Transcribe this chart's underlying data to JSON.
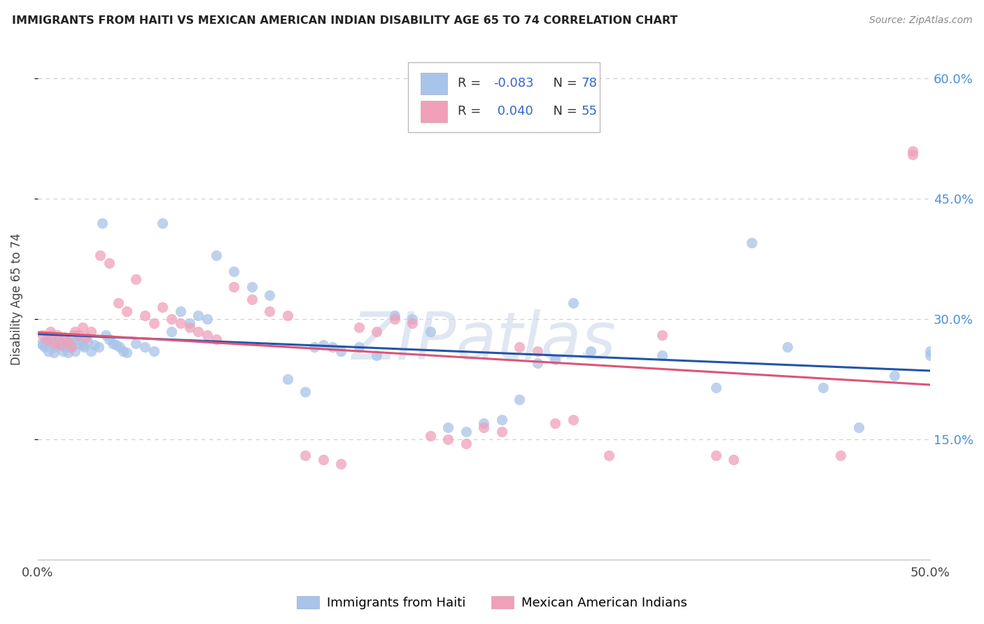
{
  "title": "IMMIGRANTS FROM HAITI VS MEXICAN AMERICAN INDIAN DISABILITY AGE 65 TO 74 CORRELATION CHART",
  "source": "Source: ZipAtlas.com",
  "ylabel": "Disability Age 65 to 74",
  "xlim": [
    0.0,
    0.5
  ],
  "ylim": [
    0.0,
    0.65
  ],
  "legend_label1": "Immigrants from Haiti",
  "legend_label2": "Mexican American Indians",
  "color_blue": "#a8c4e8",
  "color_pink": "#f0a0b8",
  "line_color_blue": "#2255aa",
  "line_color_pink": "#dd5577",
  "watermark": "ZIPatlas",
  "background_color": "#ffffff",
  "grid_color": "#cccccc",
  "haiti_x": [
    0.002,
    0.003,
    0.004,
    0.005,
    0.006,
    0.007,
    0.008,
    0.009,
    0.01,
    0.011,
    0.012,
    0.013,
    0.014,
    0.015,
    0.016,
    0.017,
    0.018,
    0.019,
    0.02,
    0.021,
    0.022,
    0.023,
    0.025,
    0.026,
    0.028,
    0.03,
    0.032,
    0.034,
    0.036,
    0.038,
    0.04,
    0.042,
    0.044,
    0.046,
    0.048,
    0.05,
    0.055,
    0.06,
    0.065,
    0.07,
    0.075,
    0.08,
    0.085,
    0.09,
    0.095,
    0.1,
    0.11,
    0.12,
    0.13,
    0.14,
    0.15,
    0.155,
    0.16,
    0.165,
    0.17,
    0.18,
    0.19,
    0.2,
    0.21,
    0.22,
    0.23,
    0.24,
    0.25,
    0.26,
    0.27,
    0.28,
    0.29,
    0.3,
    0.31,
    0.35,
    0.38,
    0.4,
    0.42,
    0.44,
    0.46,
    0.48,
    0.5,
    0.5
  ],
  "haiti_y": [
    0.27,
    0.268,
    0.265,
    0.272,
    0.26,
    0.275,
    0.28,
    0.258,
    0.265,
    0.27,
    0.275,
    0.268,
    0.26,
    0.265,
    0.272,
    0.258,
    0.27,
    0.265,
    0.28,
    0.26,
    0.275,
    0.27,
    0.268,
    0.265,
    0.272,
    0.26,
    0.268,
    0.265,
    0.42,
    0.28,
    0.275,
    0.27,
    0.268,
    0.265,
    0.26,
    0.258,
    0.27,
    0.265,
    0.26,
    0.42,
    0.285,
    0.31,
    0.295,
    0.305,
    0.3,
    0.38,
    0.36,
    0.34,
    0.33,
    0.225,
    0.21,
    0.265,
    0.268,
    0.265,
    0.26,
    0.265,
    0.255,
    0.305,
    0.3,
    0.285,
    0.165,
    0.16,
    0.17,
    0.175,
    0.2,
    0.245,
    0.25,
    0.32,
    0.26,
    0.255,
    0.215,
    0.395,
    0.265,
    0.215,
    0.165,
    0.23,
    0.26,
    0.255
  ],
  "mex_x": [
    0.003,
    0.005,
    0.007,
    0.009,
    0.011,
    0.013,
    0.015,
    0.017,
    0.019,
    0.021,
    0.023,
    0.025,
    0.027,
    0.03,
    0.035,
    0.04,
    0.045,
    0.05,
    0.055,
    0.06,
    0.065,
    0.07,
    0.075,
    0.08,
    0.085,
    0.09,
    0.095,
    0.1,
    0.11,
    0.12,
    0.13,
    0.14,
    0.15,
    0.16,
    0.17,
    0.18,
    0.19,
    0.2,
    0.21,
    0.22,
    0.23,
    0.24,
    0.25,
    0.26,
    0.27,
    0.28,
    0.29,
    0.3,
    0.32,
    0.35,
    0.38,
    0.39,
    0.45,
    0.49,
    0.49
  ],
  "mex_y": [
    0.28,
    0.275,
    0.285,
    0.27,
    0.28,
    0.268,
    0.278,
    0.272,
    0.265,
    0.285,
    0.28,
    0.29,
    0.278,
    0.285,
    0.38,
    0.37,
    0.32,
    0.31,
    0.35,
    0.305,
    0.295,
    0.315,
    0.3,
    0.295,
    0.29,
    0.285,
    0.28,
    0.275,
    0.34,
    0.325,
    0.31,
    0.305,
    0.13,
    0.125,
    0.12,
    0.29,
    0.285,
    0.3,
    0.295,
    0.155,
    0.15,
    0.145,
    0.165,
    0.16,
    0.265,
    0.26,
    0.17,
    0.175,
    0.13,
    0.28,
    0.13,
    0.125,
    0.13,
    0.51,
    0.505
  ],
  "haiti_r": -0.083,
  "haiti_n": 78,
  "mex_r": 0.04,
  "mex_n": 55
}
